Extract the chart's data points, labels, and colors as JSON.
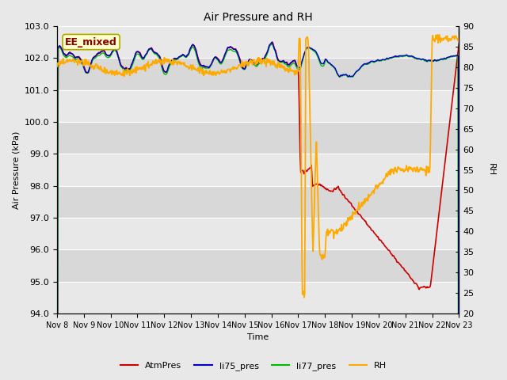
{
  "title": "Air Pressure and RH",
  "ylabel_left": "Air Pressure (kPa)",
  "ylabel_right": "RH",
  "xlabel": "Time",
  "ylim_left": [
    94.0,
    103.0
  ],
  "ylim_right": [
    20,
    90
  ],
  "yticks_left": [
    94.0,
    95.0,
    96.0,
    97.0,
    98.0,
    99.0,
    100.0,
    101.0,
    102.0,
    103.0
  ],
  "yticks_right": [
    20,
    25,
    30,
    35,
    40,
    45,
    50,
    55,
    60,
    65,
    70,
    75,
    80,
    85,
    90
  ],
  "xtick_labels": [
    "Nov 8",
    "Nov 9",
    "Nov 10",
    "Nov 11",
    "Nov 12",
    "Nov 13",
    "Nov 14",
    "Nov 15",
    "Nov 16",
    "Nov 17",
    "Nov 18",
    "Nov 19",
    "Nov 20",
    "Nov 21",
    "Nov 22",
    "Nov 23"
  ],
  "bg_color": "#e8e8e8",
  "plot_bg_color_light": "#e8e8e8",
  "plot_bg_color_dark": "#d0d0d0",
  "stripe_color_light": "#e8e8e8",
  "stripe_color_dark": "#d8d8d8",
  "grid_color": "#ffffff",
  "legend_items": [
    {
      "label": "AtmPres",
      "color": "#cc0000",
      "linestyle": "-"
    },
    {
      "label": "li75_pres",
      "color": "#0000cc",
      "linestyle": "-"
    },
    {
      "label": "li77_pres",
      "color": "#00bb00",
      "linestyle": "-"
    },
    {
      "label": "RH",
      "color": "#ffaa00",
      "linestyle": "-"
    }
  ],
  "annotation_label": "EE_mixed",
  "annotation_color_bg": "#ffffcc",
  "annotation_color_edge": "#aaaa00",
  "annotation_color_text": "#880000",
  "figsize": [
    6.4,
    4.8
  ],
  "dpi": 100
}
